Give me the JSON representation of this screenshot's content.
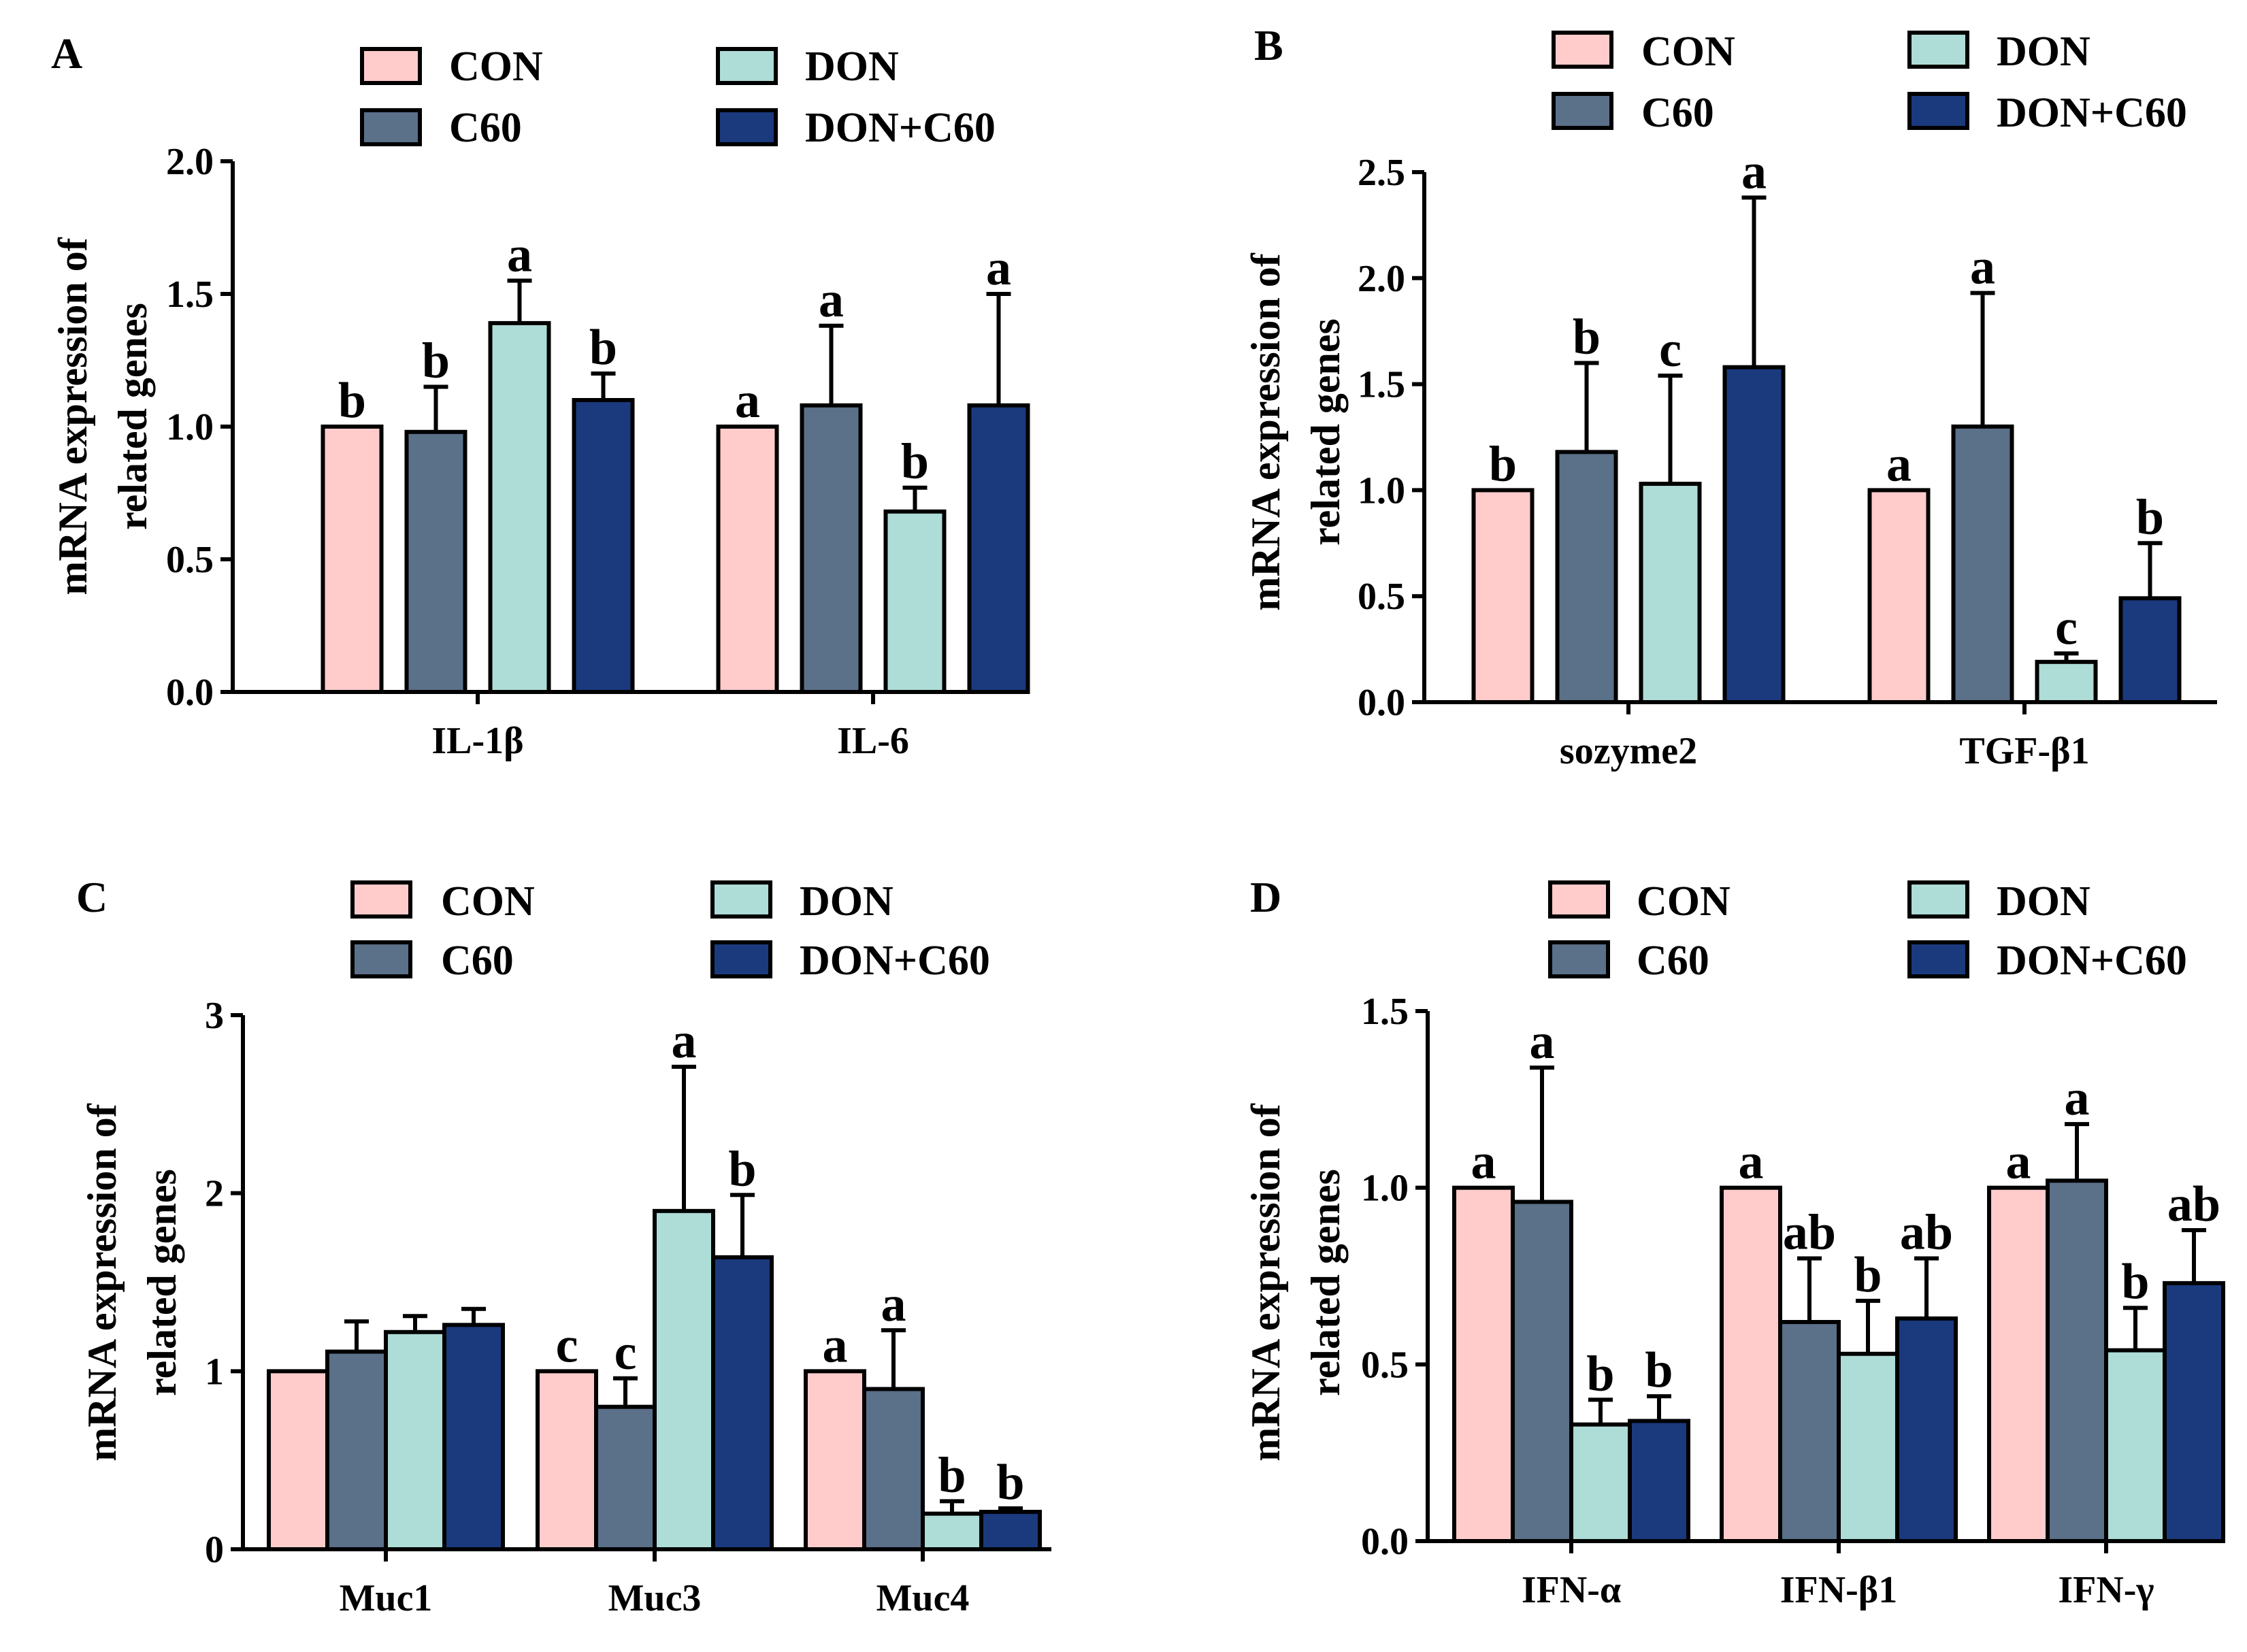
{
  "colors": {
    "CON": "#FFCCCB",
    "C60": "#5B7089",
    "DON": "#AEDCD6",
    "DON+C60": "#1A3A7D"
  },
  "legend": [
    "CON",
    "DON",
    "C60",
    "DON+C60"
  ],
  "chart_data": [
    {
      "panel": "A",
      "type": "bar",
      "ylabel_lines": [
        "mRNA expression of",
        "related genes"
      ],
      "ylim": [
        0,
        2.0
      ],
      "yticks": [
        "0.0",
        "0.5",
        "1.0",
        "1.5",
        "2.0"
      ],
      "ytick_values": [
        0,
        0.5,
        1.0,
        1.5,
        2.0
      ],
      "categories": [
        "IL-1β",
        "IL-6"
      ],
      "series": [
        {
          "name": "CON",
          "values": [
            1.0,
            1.0
          ],
          "errors": [
            0,
            0
          ],
          "letters": [
            "b",
            "a"
          ]
        },
        {
          "name": "C60",
          "values": [
            0.98,
            1.08
          ],
          "errors": [
            0.17,
            0.3
          ],
          "letters": [
            "b",
            "a"
          ]
        },
        {
          "name": "DON",
          "values": [
            1.39,
            0.68
          ],
          "errors": [
            0.16,
            0.09
          ],
          "letters": [
            "a",
            "b"
          ]
        },
        {
          "name": "DON+C60",
          "values": [
            1.1,
            1.08
          ],
          "errors": [
            0.1,
            0.42
          ],
          "letters": [
            "b",
            "a"
          ]
        }
      ]
    },
    {
      "panel": "B",
      "type": "bar",
      "ylabel_lines": [
        "mRNA expression of",
        "related genes"
      ],
      "ylim": [
        0,
        2.5
      ],
      "yticks": [
        "0.0",
        "0.5",
        "1.0",
        "1.5",
        "2.0",
        "2.5"
      ],
      "ytick_values": [
        0,
        0.5,
        1.0,
        1.5,
        2.0,
        2.5
      ],
      "categories": [
        "sozyme2",
        "TGF-β1"
      ],
      "series": [
        {
          "name": "CON",
          "values": [
            1.0,
            1.0
          ],
          "errors": [
            0,
            0
          ],
          "letters": [
            "b",
            "a"
          ]
        },
        {
          "name": "C60",
          "values": [
            1.18,
            1.3
          ],
          "errors": [
            0.42,
            0.63
          ],
          "letters": [
            "b",
            "a"
          ]
        },
        {
          "name": "DON",
          "values": [
            1.03,
            0.19
          ],
          "errors": [
            0.51,
            0.04
          ],
          "letters": [
            "c",
            "c"
          ]
        },
        {
          "name": "DON+C60",
          "values": [
            1.58,
            0.49
          ],
          "errors": [
            0.8,
            0.26
          ],
          "letters": [
            "a",
            "b"
          ]
        }
      ]
    },
    {
      "panel": "C",
      "type": "bar",
      "ylabel_lines": [
        "mRNA expression of",
        "related genes"
      ],
      "ylim": [
        0,
        3
      ],
      "yticks": [
        "0",
        "1",
        "2",
        "3"
      ],
      "ytick_values": [
        0,
        1,
        2,
        3
      ],
      "categories": [
        "Muc1",
        "Muc3",
        "Muc4"
      ],
      "series": [
        {
          "name": "CON",
          "values": [
            1.0,
            1.0,
            1.0
          ],
          "errors": [
            0,
            0,
            0
          ],
          "letters": [
            "",
            "c",
            "a"
          ]
        },
        {
          "name": "C60",
          "values": [
            1.11,
            0.8,
            0.9
          ],
          "errors": [
            0.17,
            0.16,
            0.33
          ],
          "letters": [
            "",
            "c",
            "a"
          ]
        },
        {
          "name": "DON",
          "values": [
            1.22,
            1.9,
            0.2
          ],
          "errors": [
            0.09,
            0.81,
            0.07
          ],
          "letters": [
            "",
            "a",
            "b"
          ]
        },
        {
          "name": "DON+C60",
          "values": [
            1.26,
            1.64,
            0.21
          ],
          "errors": [
            0.09,
            0.35,
            0.02
          ],
          "letters": [
            "",
            "b",
            "b"
          ]
        }
      ]
    },
    {
      "panel": "D",
      "type": "bar",
      "ylabel_lines": [
        "mRNA expression of",
        "related genes"
      ],
      "ylim": [
        0,
        1.5
      ],
      "yticks": [
        "0.0",
        "0.5",
        "1.0",
        "1.5"
      ],
      "ytick_values": [
        0,
        0.5,
        1.0,
        1.5
      ],
      "categories": [
        "IFN-α",
        "IFN-β1",
        "IFN-γ"
      ],
      "series": [
        {
          "name": "CON",
          "values": [
            1.0,
            1.0,
            1.0
          ],
          "errors": [
            0,
            0,
            0
          ],
          "letters": [
            "a",
            "a",
            "a"
          ]
        },
        {
          "name": "C60",
          "values": [
            0.96,
            0.62,
            1.02
          ],
          "errors": [
            0.38,
            0.18,
            0.16
          ],
          "letters": [
            "a",
            "ab",
            "a"
          ]
        },
        {
          "name": "DON",
          "values": [
            0.33,
            0.53,
            0.54
          ],
          "errors": [
            0.07,
            0.15,
            0.12
          ],
          "letters": [
            "b",
            "b",
            "b"
          ]
        },
        {
          "name": "DON+C60",
          "values": [
            0.34,
            0.63,
            0.73
          ],
          "errors": [
            0.07,
            0.17,
            0.15
          ],
          "letters": [
            "b",
            "ab",
            "ab"
          ]
        }
      ]
    }
  ]
}
